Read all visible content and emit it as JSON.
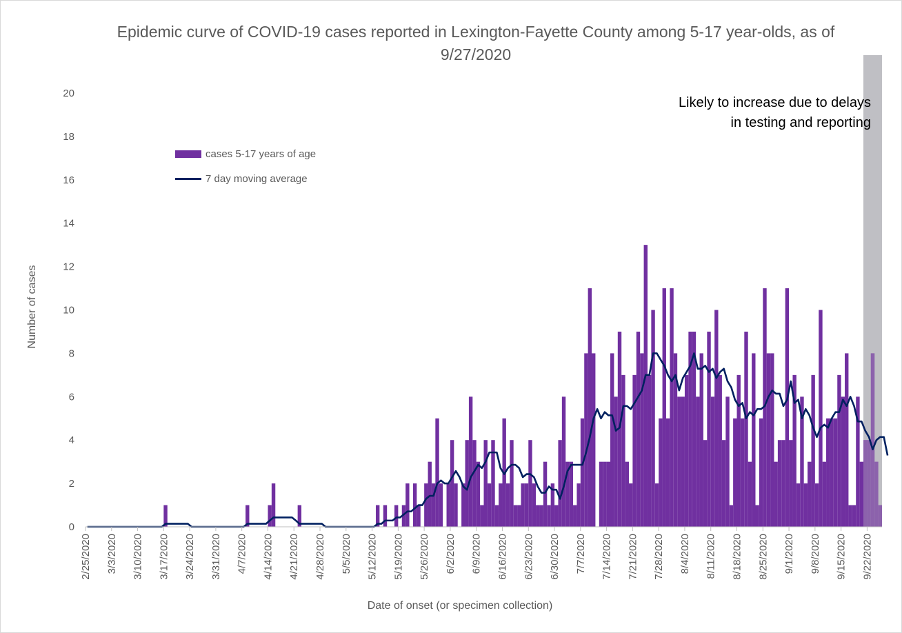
{
  "colors": {
    "bar": "#7030a0",
    "line": "#002060",
    "shade": "#bfbfc4",
    "axis_text": "#595959",
    "annotation_text": "#000000"
  },
  "chart_data": {
    "type": "bar",
    "title": "Epidemic curve of COVID-19 cases reported in Lexington-Fayette County among 5-17 year-olds, as of 9/27/2020",
    "xlabel": "Date of onset (or specimen collection)",
    "ylabel": "Number of cases",
    "ylim": [
      0,
      20
    ],
    "yticks": [
      0,
      2,
      4,
      6,
      8,
      10,
      12,
      14,
      16,
      18,
      20
    ],
    "xticks": [
      "2/25/2020",
      "3/3/2020",
      "3/10/2020",
      "3/17/2020",
      "3/24/2020",
      "3/31/2020",
      "4/7/2020",
      "4/14/2020",
      "4/21/2020",
      "4/28/2020",
      "5/5/2020",
      "5/12/2020",
      "5/19/2020",
      "5/26/2020",
      "6/2/2020",
      "6/9/2020",
      "6/16/2020",
      "6/23/2020",
      "6/30/2020",
      "7/7/2020",
      "7/14/2020",
      "7/21/2020",
      "7/28/2020",
      "8/4/2020",
      "8/11/2020",
      "8/18/2020",
      "8/25/2020",
      "9/1/2020",
      "9/8/2020",
      "9/15/2020",
      "9/22/2020"
    ],
    "x_start": "2/25/2020",
    "x_end": "9/27/2020",
    "grid": false,
    "legend_position": "upper-left",
    "shaded_region": {
      "from": "9/21/2020",
      "to": "9/27/2020"
    },
    "annotation": "Likely to increase due to delays in testing and reporting",
    "series": [
      {
        "name": "cases 5-17 years of age",
        "type": "bar",
        "values": [
          0,
          0,
          0,
          0,
          0,
          0,
          0,
          0,
          0,
          0,
          0,
          0,
          0,
          0,
          0,
          0,
          0,
          0,
          0,
          0,
          0,
          1,
          0,
          0,
          0,
          0,
          0,
          0,
          0,
          0,
          0,
          0,
          0,
          0,
          0,
          0,
          0,
          0,
          0,
          0,
          0,
          0,
          0,
          1,
          0,
          0,
          0,
          0,
          0,
          1,
          2,
          0,
          0,
          0,
          0,
          0,
          0,
          1,
          0,
          0,
          0,
          0,
          0,
          0,
          0,
          0,
          0,
          0,
          0,
          0,
          0,
          0,
          0,
          0,
          0,
          0,
          0,
          0,
          1,
          0,
          1,
          0,
          0,
          1,
          0,
          1,
          2,
          0,
          2,
          1,
          0,
          2,
          3,
          2,
          5,
          2,
          0,
          2,
          4,
          2,
          0,
          2,
          4,
          6,
          4,
          3,
          1,
          4,
          2,
          4,
          1,
          2,
          5,
          2,
          4,
          1,
          1,
          2,
          2,
          4,
          2,
          1,
          1,
          3,
          1,
          2,
          1,
          4,
          6,
          3,
          3,
          1,
          2,
          5,
          8,
          11,
          8,
          0,
          3,
          3,
          3,
          8,
          6,
          9,
          7,
          3,
          2,
          7,
          9,
          8,
          13,
          7,
          10,
          2,
          5,
          11,
          5,
          11,
          8,
          6,
          6,
          7,
          9,
          9,
          6,
          8,
          4,
          9,
          6,
          10,
          7,
          4,
          6,
          1,
          5,
          7,
          5,
          9,
          3,
          8,
          1,
          5,
          11,
          8,
          8,
          3,
          4,
          4,
          11,
          4,
          7,
          2,
          6,
          2,
          3,
          7,
          2,
          10,
          3,
          5,
          5,
          5,
          7,
          6,
          8,
          1,
          1,
          6,
          3,
          4,
          4,
          8,
          3,
          1
        ]
      },
      {
        "name": "7 day moving average",
        "type": "line",
        "values": [
          0,
          0,
          0,
          0,
          0,
          0,
          0,
          0,
          0,
          0,
          0,
          0,
          0,
          0,
          0,
          0,
          0,
          0,
          0,
          0,
          0,
          0.14,
          0.14,
          0.14,
          0.14,
          0.14,
          0.14,
          0.14,
          0,
          0,
          0,
          0,
          0,
          0,
          0,
          0,
          0,
          0,
          0,
          0,
          0,
          0,
          0,
          0.14,
          0.14,
          0.14,
          0.14,
          0.14,
          0.14,
          0.29,
          0.43,
          0.43,
          0.43,
          0.43,
          0.43,
          0.43,
          0.29,
          0.14,
          0.14,
          0.14,
          0.14,
          0.14,
          0.14,
          0.14,
          0,
          0,
          0,
          0,
          0,
          0,
          0,
          0,
          0,
          0,
          0,
          0,
          0,
          0,
          0.14,
          0.14,
          0.29,
          0.29,
          0.29,
          0.43,
          0.43,
          0.57,
          0.71,
          0.71,
          0.86,
          1.0,
          1.0,
          1.29,
          1.43,
          1.43,
          2.0,
          2.14,
          2.0,
          2.0,
          2.29,
          2.57,
          2.29,
          1.86,
          1.71,
          2.29,
          2.57,
          2.86,
          2.71,
          3.0,
          3.43,
          3.43,
          3.43,
          2.71,
          2.43,
          2.71,
          2.86,
          2.86,
          2.71,
          2.29,
          2.43,
          2.43,
          2.29,
          1.86,
          1.57,
          1.57,
          1.86,
          1.71,
          1.71,
          1.29,
          1.86,
          2.57,
          2.86,
          2.86,
          2.86,
          2.86,
          3.43,
          4.14,
          5.0,
          5.43,
          5.0,
          5.29,
          5.14,
          5.14,
          4.43,
          4.57,
          5.57,
          5.57,
          5.43,
          5.71,
          6.0,
          6.29,
          7.0,
          7.0,
          8.0,
          8.0,
          7.71,
          7.43,
          7.0,
          6.71,
          7.0,
          6.29,
          6.86,
          7.14,
          7.43,
          8.0,
          7.29,
          7.29,
          7.43,
          7.14,
          7.29,
          6.86,
          7.14,
          7.29,
          6.71,
          6.43,
          5.86,
          5.57,
          5.71,
          5.0,
          5.29,
          5.14,
          5.43,
          5.43,
          5.57,
          6.0,
          6.29,
          6.14,
          6.14,
          5.57,
          5.86,
          6.71,
          5.71,
          5.86,
          5.0,
          5.43,
          5.14,
          4.57,
          4.14,
          4.57,
          4.71,
          4.57,
          5.0,
          5.29,
          5.29,
          5.86,
          5.57,
          6.0,
          5.57,
          4.86,
          4.86,
          4.43,
          4.14,
          3.57,
          4.0,
          4.14,
          4.14,
          3.29
        ]
      }
    ]
  }
}
